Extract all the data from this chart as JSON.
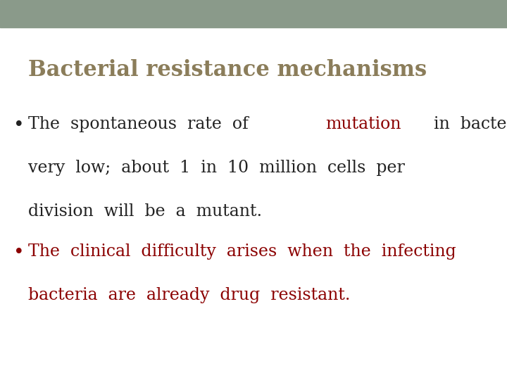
{
  "title": "Bacterial resistance mechanisms",
  "title_color": "#8B7D5A",
  "header_bar_color": "#8A9A8A",
  "header_bar_height": 0.072,
  "background_color": "#FFFFFF",
  "bullet1_line1_pre": "The  spontaneous  rate  of  ",
  "bullet1_line1_mid": "mutation",
  "bullet1_line1_post": "  in  bacteria  is",
  "bullet1_line1_pre_color": "#222222",
  "bullet1_line1_mid_color": "#8B0000",
  "bullet1_line1_post_color": "#222222",
  "bullet1_line2": "very  low;  about  1  in  10  million  cells  per",
  "bullet1_line2_color": "#222222",
  "bullet1_line3": "division  will  be  a  mutant.",
  "bullet1_line3_color": "#222222",
  "bullet2_line1": "The  clinical  difficulty  arises  when  the  infecting",
  "bullet2_line1_color": "#8B0000",
  "bullet2_line2": "bacteria  are  already  drug  resistant.",
  "bullet2_line2_color": "#8B0000",
  "font_size_title": 22,
  "font_size_body": 17,
  "font_family": "DejaVu Serif"
}
